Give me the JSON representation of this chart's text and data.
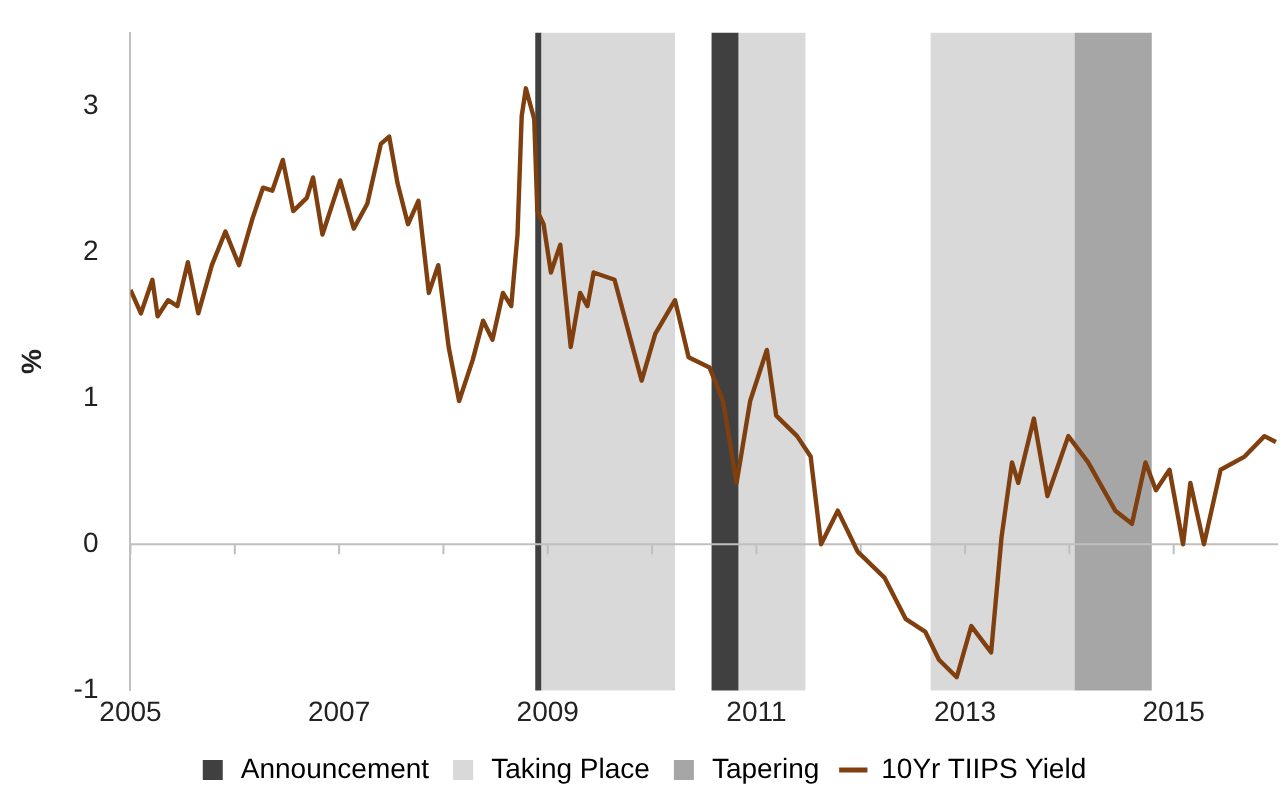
{
  "chart_data": {
    "type": "line",
    "ylabel": "%",
    "xlim": [
      2005,
      2016
    ],
    "xticks": [
      2005,
      {
        "value": 2006,
        "label": null
      },
      2007,
      {
        "value": 2008,
        "label": null
      },
      2009,
      {
        "value": 2010,
        "label": null
      },
      2011,
      {
        "value": 2012,
        "label": null
      },
      2013,
      {
        "value": 2014,
        "label": null
      },
      2015
    ],
    "ylim": [
      -1,
      3.5
    ],
    "yticks": [
      -1,
      0,
      1,
      2,
      3
    ],
    "legend": "bottom",
    "ref_lines": [
      {
        "axis": "y",
        "value": 0,
        "color": "#bfbfbf"
      }
    ],
    "bands": [
      {
        "axis": "x",
        "from": 2008.88,
        "to": 2008.94,
        "label": "Announcement",
        "color": "#404040"
      },
      {
        "axis": "x",
        "from": 2008.94,
        "to": 2010.22,
        "label": "Taking Place",
        "color": "#d9d9d9"
      },
      {
        "axis": "x",
        "from": 2010.57,
        "to": 2010.83,
        "color": "#404040"
      },
      {
        "axis": "x",
        "from": 2010.83,
        "to": 2011.47,
        "color": "#d9d9d9"
      },
      {
        "axis": "x",
        "from": 2012.67,
        "to": 2014.05,
        "color": "#d9d9d9"
      },
      {
        "axis": "x",
        "from": 2014.05,
        "to": 2014.79,
        "label": "Tapering",
        "color": "#a6a6a6"
      }
    ],
    "series": [
      {
        "name": "10Yr TIIPS Yield",
        "color": "#7f3f0f",
        "x": [
          2005.0,
          2005.1,
          2005.21,
          2005.26,
          2005.36,
          2005.45,
          2005.55,
          2005.65,
          2005.78,
          2005.91,
          2006.04,
          2006.17,
          2006.27,
          2006.36,
          2006.46,
          2006.56,
          2006.69,
          2006.75,
          2006.84,
          2007.01,
          2007.14,
          2007.27,
          2007.4,
          2007.48,
          2007.56,
          2007.66,
          2007.76,
          2007.86,
          2007.95,
          2008.05,
          2008.15,
          2008.28,
          2008.38,
          2008.47,
          2008.57,
          2008.65,
          2008.71,
          2008.75,
          2008.79,
          2008.87,
          2008.9,
          2008.96,
          2009.03,
          2009.12,
          2009.22,
          2009.31,
          2009.38,
          2009.44,
          2009.64,
          2009.9,
          2010.03,
          2010.22,
          2010.35,
          2010.55,
          2010.68,
          2010.81,
          2010.94,
          2011.1,
          2011.19,
          2011.39,
          2011.52,
          2011.62,
          2011.78,
          2011.97,
          2012.23,
          2012.43,
          2012.62,
          2012.75,
          2012.92,
          2013.06,
          2013.25,
          2013.35,
          2013.45,
          2013.51,
          2013.66,
          2013.79,
          2013.99,
          2014.18,
          2014.44,
          2014.6,
          2014.73,
          2014.83,
          2014.96,
          2015.09,
          2015.16,
          2015.29,
          2015.45,
          2015.68,
          2015.87,
          2015.98
        ],
        "values": [
          1.74,
          1.58,
          1.81,
          1.56,
          1.67,
          1.63,
          1.93,
          1.58,
          1.91,
          2.14,
          1.91,
          2.23,
          2.44,
          2.42,
          2.63,
          2.28,
          2.37,
          2.51,
          2.12,
          2.49,
          2.16,
          2.33,
          2.74,
          2.79,
          2.47,
          2.19,
          2.35,
          1.72,
          1.91,
          1.35,
          0.98,
          1.26,
          1.53,
          1.4,
          1.72,
          1.63,
          2.12,
          2.93,
          3.12,
          2.91,
          2.28,
          2.19,
          1.86,
          2.05,
          1.35,
          1.72,
          1.63,
          1.86,
          1.81,
          1.12,
          1.44,
          1.67,
          1.28,
          1.21,
          0.98,
          0.42,
          0.98,
          1.33,
          0.88,
          0.74,
          0.6,
          0.0,
          0.23,
          -0.05,
          -0.23,
          -0.51,
          -0.6,
          -0.79,
          -0.91,
          -0.56,
          -0.74,
          0.05,
          0.56,
          0.42,
          0.86,
          0.33,
          0.74,
          0.56,
          0.23,
          0.14,
          0.56,
          0.37,
          0.51,
          0.0,
          0.42,
          0.0,
          0.51,
          0.6,
          0.74,
          0.7
        ]
      }
    ]
  }
}
